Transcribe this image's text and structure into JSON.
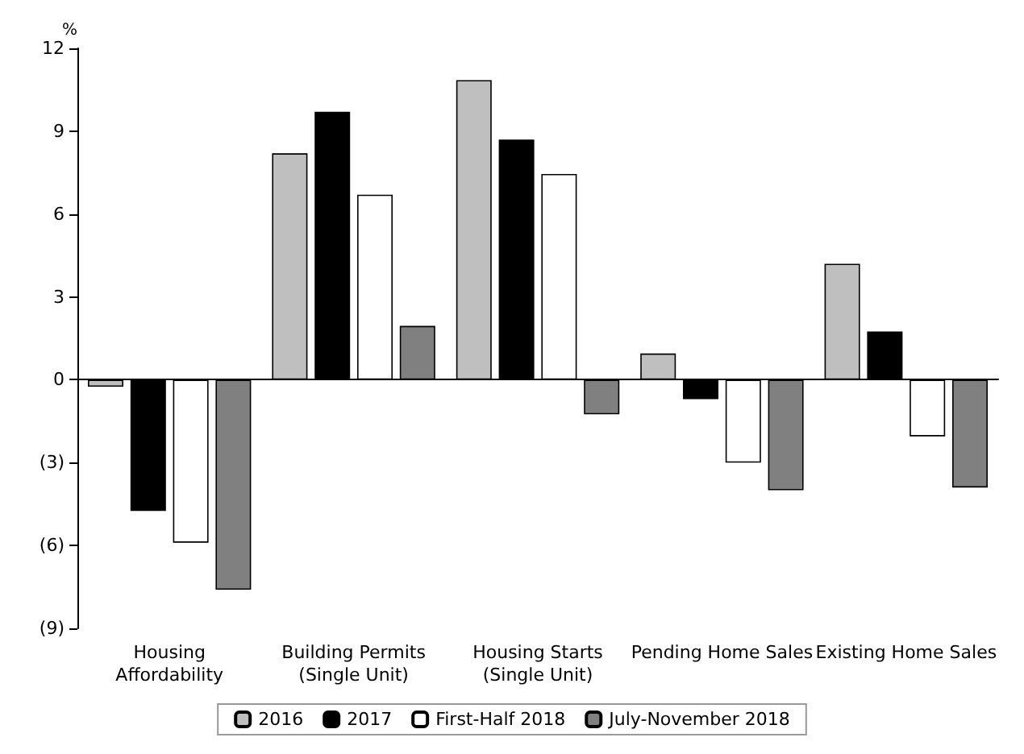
{
  "chart_data": {
    "type": "bar",
    "ylabel": "%",
    "categories": [
      "Housing\nAffordability",
      "Building Permits\n(Single Unit)",
      "Housing Starts\n(Single Unit)",
      "Pending Home Sales",
      "Existing Home Sales"
    ],
    "series": [
      {
        "name": "2016",
        "color": "#bfbfbf",
        "values": [
          -0.25,
          8.2,
          10.85,
          0.95,
          4.2
        ]
      },
      {
        "name": "2017",
        "color": "#000000",
        "values": [
          -4.75,
          9.7,
          8.7,
          -0.7,
          1.75
        ]
      },
      {
        "name": "First-Half 2018",
        "color": "#ffffff",
        "values": [
          -5.9,
          6.7,
          7.45,
          -3.0,
          -2.05
        ]
      },
      {
        "name": "July-November 2018",
        "color": "#808080",
        "values": [
          -7.6,
          1.95,
          -1.25,
          -4.0,
          -3.9
        ]
      }
    ],
    "ylim": [
      -9,
      12
    ],
    "yticks": [
      {
        "value": -9,
        "label": "(9)"
      },
      {
        "value": -6,
        "label": "(6)"
      },
      {
        "value": -3,
        "label": "(3)"
      },
      0,
      3,
      6,
      9,
      12
    ],
    "legend": "bottom"
  }
}
